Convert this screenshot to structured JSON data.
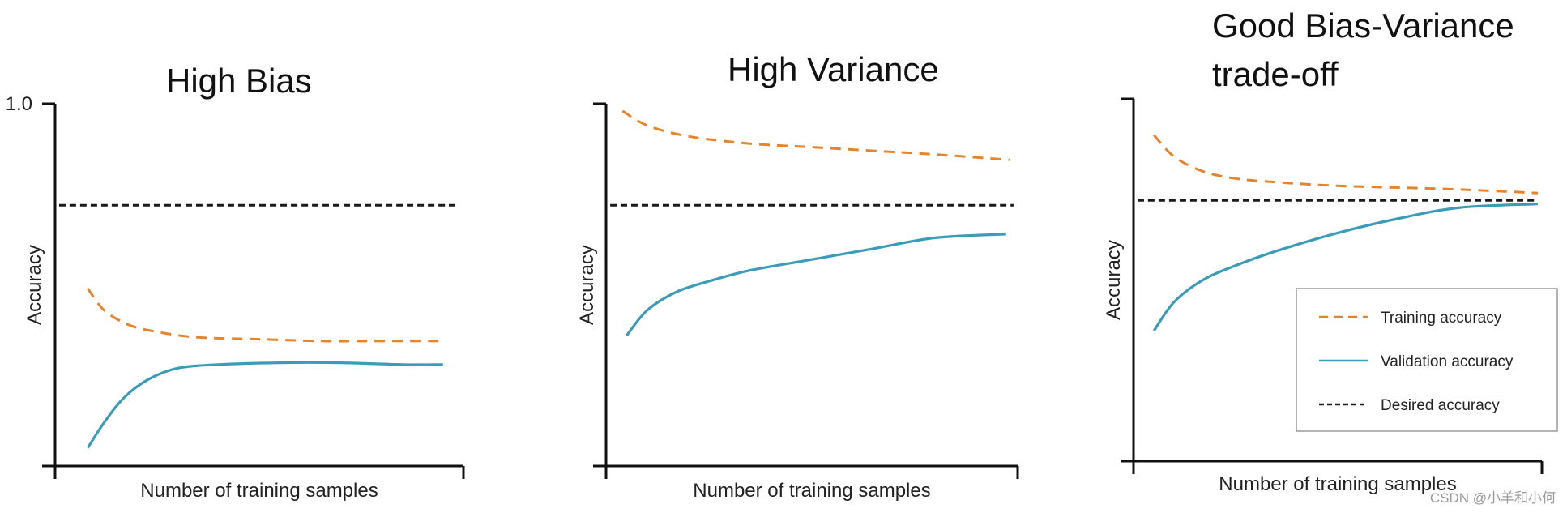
{
  "colors": {
    "training": "#E8832A",
    "validation": "#3A9CB8",
    "desired": "#1a1a1a",
    "axis": "#111111"
  },
  "watermark": "CSDN @小羊和小何",
  "chart_data": [
    {
      "type": "line",
      "title": "High Bias",
      "xlabel": "Number of training samples",
      "ylabel": "Accuracy",
      "yticks": [
        {
          "value": 1.0,
          "label": "1.0"
        }
      ],
      "xlim": [
        0,
        1
      ],
      "ylim": [
        0,
        1
      ],
      "series": [
        {
          "name": "Training accuracy",
          "style": "dashed",
          "color": "#E8832A",
          "x": [
            0.08,
            0.12,
            0.18,
            0.25,
            0.35,
            0.5,
            0.65,
            0.8,
            0.95
          ],
          "y": [
            0.49,
            0.43,
            0.39,
            0.37,
            0.355,
            0.35,
            0.345,
            0.345,
            0.345
          ]
        },
        {
          "name": "Validation accuracy",
          "style": "solid",
          "color": "#3A9CB8",
          "x": [
            0.08,
            0.12,
            0.17,
            0.23,
            0.3,
            0.4,
            0.55,
            0.7,
            0.85,
            0.95
          ],
          "y": [
            0.05,
            0.12,
            0.19,
            0.24,
            0.27,
            0.28,
            0.285,
            0.285,
            0.28,
            0.28
          ]
        },
        {
          "name": "Desired accuracy",
          "style": "dashed",
          "color": "#1a1a1a",
          "x": [
            0.01,
            0.98
          ],
          "y": [
            0.72,
            0.72
          ]
        }
      ]
    },
    {
      "type": "line",
      "title": "High Variance",
      "xlabel": "Number of training samples",
      "ylabel": "Accuracy",
      "xlim": [
        0,
        1
      ],
      "ylim": [
        0,
        1
      ],
      "series": [
        {
          "name": "Training accuracy",
          "style": "dashed",
          "color": "#E8832A",
          "x": [
            0.04,
            0.1,
            0.2,
            0.35,
            0.5,
            0.65,
            0.8,
            0.98
          ],
          "y": [
            0.98,
            0.94,
            0.91,
            0.89,
            0.88,
            0.87,
            0.86,
            0.845
          ]
        },
        {
          "name": "Validation accuracy",
          "style": "solid",
          "color": "#3A9CB8",
          "x": [
            0.05,
            0.1,
            0.17,
            0.25,
            0.35,
            0.5,
            0.65,
            0.8,
            0.97
          ],
          "y": [
            0.36,
            0.43,
            0.48,
            0.51,
            0.54,
            0.57,
            0.6,
            0.63,
            0.64
          ]
        },
        {
          "name": "Desired accuracy",
          "style": "dashed",
          "color": "#1a1a1a",
          "x": [
            0.01,
            0.99
          ],
          "y": [
            0.72,
            0.72
          ]
        }
      ]
    },
    {
      "type": "line",
      "title": "Good Bias-Variance trade-off",
      "title_lines": [
        "Good Bias-Variance",
        "trade-off"
      ],
      "xlabel": "Number of training samples",
      "ylabel": "Accuracy",
      "xlim": [
        0,
        1
      ],
      "ylim": [
        0,
        1
      ],
      "legend": {
        "position": "bottom-right",
        "entries": [
          "Training accuracy",
          "Validation accuracy",
          "Desired accuracy"
        ]
      },
      "series": [
        {
          "name": "Training accuracy",
          "style": "dashed",
          "color": "#E8832A",
          "x": [
            0.05,
            0.1,
            0.17,
            0.25,
            0.35,
            0.5,
            0.65,
            0.8,
            0.99
          ],
          "y": [
            0.9,
            0.84,
            0.8,
            0.78,
            0.77,
            0.76,
            0.755,
            0.75,
            0.74
          ]
        },
        {
          "name": "Validation accuracy",
          "style": "solid",
          "color": "#3A9CB8",
          "x": [
            0.05,
            0.1,
            0.17,
            0.25,
            0.35,
            0.5,
            0.65,
            0.8,
            0.99
          ],
          "y": [
            0.36,
            0.44,
            0.5,
            0.54,
            0.58,
            0.63,
            0.67,
            0.7,
            0.71
          ]
        },
        {
          "name": "Desired accuracy",
          "style": "dashed",
          "color": "#1a1a1a",
          "x": [
            0.01,
            0.99
          ],
          "y": [
            0.72,
            0.72
          ]
        }
      ]
    }
  ]
}
